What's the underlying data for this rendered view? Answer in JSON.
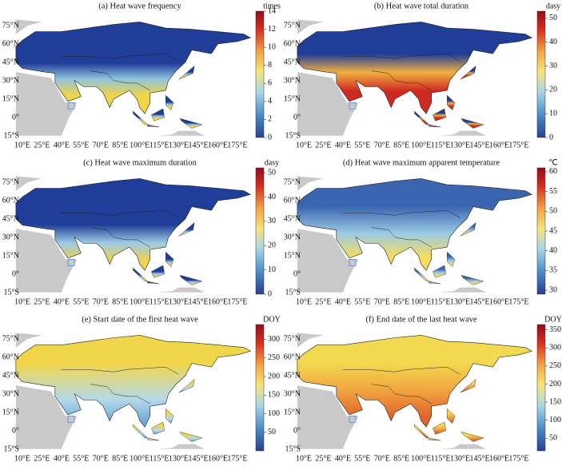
{
  "lat_labels": [
    "75°N",
    "60°N",
    "45°N",
    "30°N",
    "15°N",
    "0°",
    "15°S"
  ],
  "lon_labels": [
    "10°E",
    "25°E",
    "40°E",
    "55°E",
    "70°E",
    "85°E",
    "100°E",
    "115°E",
    "130°E",
    "145°E",
    "160°E",
    "175°E"
  ],
  "panels": [
    {
      "title": "(a) Heat wave frequency",
      "unit": "times",
      "clim": [
        0,
        14
      ],
      "colorbar_ticks": [
        0,
        2,
        4,
        6,
        8,
        10,
        12,
        14
      ]
    },
    {
      "title": "(b) Heat wave total duration",
      "unit": "dasy",
      "clim": [
        0,
        53
      ],
      "colorbar_ticks": [
        0,
        10,
        20,
        30,
        40,
        50
      ]
    },
    {
      "title": "(c) Heat wave maximum duration",
      "unit": "dasy",
      "clim": [
        0,
        52
      ],
      "colorbar_ticks": [
        0,
        10,
        20,
        30,
        40,
        50
      ]
    },
    {
      "title": "(d) Heat wave maximum apparent temperature",
      "unit": "℃",
      "clim": [
        29,
        61
      ],
      "colorbar_ticks": [
        30,
        35,
        40,
        45,
        50,
        55,
        60
      ]
    },
    {
      "title": "(e) Start date of the first heat wave",
      "unit": "DOY",
      "clim": [
        0,
        340
      ],
      "colorbar_ticks": [
        50,
        100,
        150,
        200,
        250,
        300
      ]
    },
    {
      "title": "(f) End date of the last heat wave",
      "unit": "DOY",
      "clim": [
        15,
        365
      ],
      "colorbar_ticks": [
        50,
        100,
        150,
        200,
        250,
        300,
        350
      ]
    }
  ]
}
